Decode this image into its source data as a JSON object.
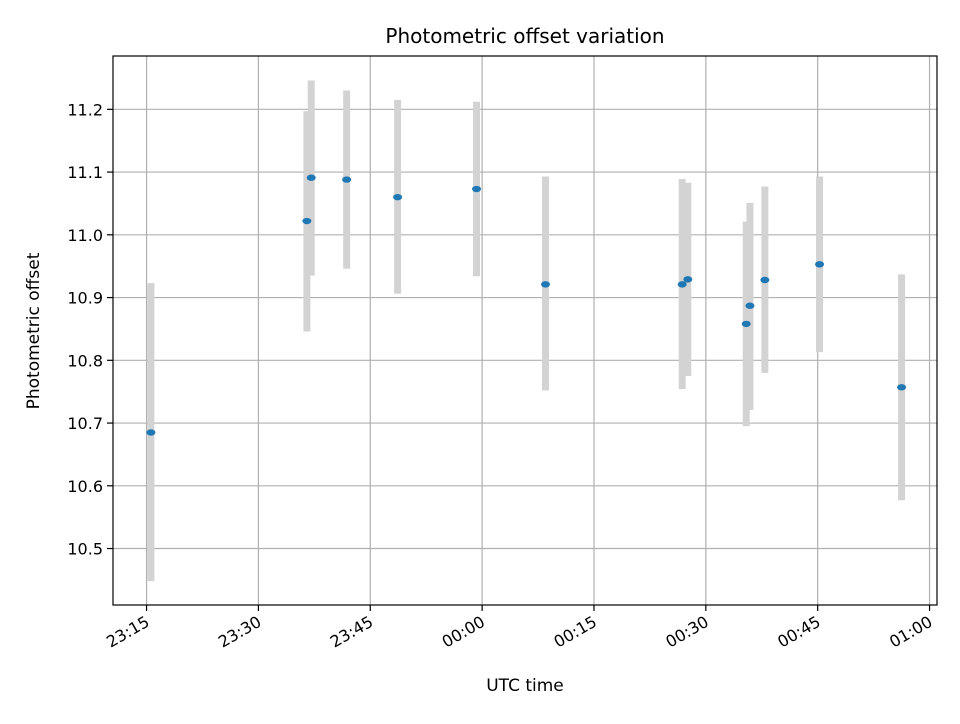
{
  "chart_data": {
    "type": "scatter",
    "title": "Photometric offset variation",
    "xlabel": "UTC time",
    "ylabel": "Photometric offset",
    "x_ticks": [
      "23:15",
      "23:30",
      "23:45",
      "00:00",
      "00:15",
      "00:30",
      "00:45",
      "01:00"
    ],
    "x_tick_minutes": [
      0,
      15,
      30,
      45,
      60,
      75,
      90,
      105
    ],
    "x_range_minutes": [
      -4.5,
      106
    ],
    "y_ticks": [
      "10.5",
      "10.6",
      "10.7",
      "10.8",
      "10.9",
      "11.0",
      "11.1",
      "11.2"
    ],
    "y_tick_values": [
      10.5,
      10.6,
      10.7,
      10.8,
      10.9,
      11.0,
      11.1,
      11.2
    ],
    "ylim": [
      10.41,
      11.285
    ],
    "grid": true,
    "colors": {
      "point": "#1f77b4",
      "errorbar": "#d3d3d3",
      "grid": "#b0b0b0",
      "axes": "#000000"
    },
    "points": [
      {
        "time": "23:15:35",
        "y": 10.685,
        "ylow": 10.448,
        "yhigh": 10.923
      },
      {
        "time": "23:36:30",
        "y": 11.022,
        "ylow": 10.846,
        "yhigh": 11.197
      },
      {
        "time": "23:37:05",
        "y": 11.091,
        "ylow": 10.935,
        "yhigh": 11.246
      },
      {
        "time": "23:41:50",
        "y": 11.088,
        "ylow": 10.946,
        "yhigh": 11.23
      },
      {
        "time": "23:48:40",
        "y": 11.06,
        "ylow": 10.906,
        "yhigh": 11.215
      },
      {
        "time": "23:59:15",
        "y": 11.073,
        "ylow": 10.934,
        "yhigh": 11.212
      },
      {
        "time": "00:08:30",
        "y": 10.921,
        "ylow": 10.752,
        "yhigh": 11.093
      },
      {
        "time": "00:26:50",
        "y": 10.921,
        "ylow": 10.754,
        "yhigh": 11.089
      },
      {
        "time": "00:27:35",
        "y": 10.929,
        "ylow": 10.775,
        "yhigh": 11.083
      },
      {
        "time": "00:35:25",
        "y": 10.858,
        "ylow": 10.695,
        "yhigh": 11.021
      },
      {
        "time": "00:35:55",
        "y": 10.887,
        "ylow": 10.721,
        "yhigh": 11.051
      },
      {
        "time": "00:37:55",
        "y": 10.928,
        "ylow": 10.78,
        "yhigh": 11.077
      },
      {
        "time": "00:45:15",
        "y": 10.953,
        "ylow": 10.813,
        "yhigh": 11.093
      },
      {
        "time": "00:56:15",
        "y": 10.757,
        "ylow": 10.577,
        "yhigh": 10.937
      }
    ]
  }
}
